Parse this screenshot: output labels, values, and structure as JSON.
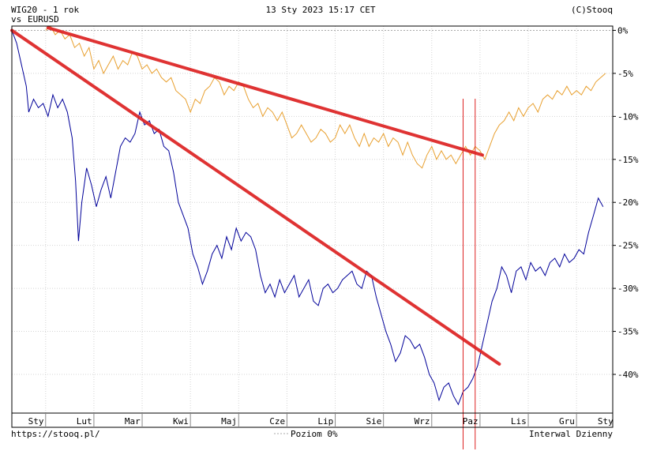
{
  "header": {
    "title": "WIG20 - 1 rok",
    "vs_label": "vs",
    "compare_symbol": "EURUSD",
    "timestamp": "13 Sty 2023 15:17 CET",
    "copyright": "(C)Stooq"
  },
  "footer": {
    "url": "https://stooq.pl/",
    "legend_level": "Poziom 0%",
    "interval": "Interwal Dzienny"
  },
  "colors": {
    "main_series": "#000099",
    "compare_series": "#e8a030",
    "trendline": "#dd2222",
    "vline": "#dd2222",
    "zero_line": "#aaaaaa"
  },
  "chart_data": {
    "type": "line",
    "title": "WIG20 - 1 rok",
    "xlabel": "",
    "ylabel": "",
    "x_unit": "month",
    "xlim": [
      0,
      12.45
    ],
    "ylim": [
      -44.5,
      0.5
    ],
    "y_ticks": [
      0,
      -5,
      -10,
      -15,
      -20,
      -25,
      -30,
      -35,
      -40
    ],
    "y_tick_labels": [
      "0%",
      "-5%",
      "-10%",
      "-15%",
      "-20%",
      "-25%",
      "-30%",
      "-35%",
      "-40%"
    ],
    "x_tick_labels": [
      "Sty",
      "Lut",
      "Mar",
      "Kwi",
      "Maj",
      "Cze",
      "Lip",
      "Sie",
      "Wrz",
      "Paz",
      "Lis",
      "Gru",
      "Sty"
    ],
    "x_label_positions": [
      0.5,
      1.5,
      2.5,
      3.5,
      4.5,
      5.5,
      6.5,
      7.5,
      8.5,
      9.5,
      10.5,
      11.5,
      12.3
    ],
    "x_month_boundaries": [
      0.7,
      1.7,
      2.7,
      3.7,
      4.7,
      5.7,
      6.7,
      7.7,
      8.7,
      9.7,
      10.7,
      11.7
    ],
    "grid": true,
    "series": [
      {
        "name": "WIG20",
        "points": [
          [
            0.0,
            0.0
          ],
          [
            0.1,
            -1.5
          ],
          [
            0.2,
            -4.0
          ],
          [
            0.3,
            -6.5
          ],
          [
            0.35,
            -9.5
          ],
          [
            0.45,
            -8.0
          ],
          [
            0.55,
            -9.0
          ],
          [
            0.65,
            -8.5
          ],
          [
            0.75,
            -10.0
          ],
          [
            0.85,
            -7.5
          ],
          [
            0.95,
            -9.0
          ],
          [
            1.05,
            -8.0
          ],
          [
            1.15,
            -9.5
          ],
          [
            1.25,
            -12.5
          ],
          [
            1.32,
            -17.5
          ],
          [
            1.38,
            -24.5
          ],
          [
            1.45,
            -20.0
          ],
          [
            1.55,
            -16.0
          ],
          [
            1.65,
            -18.0
          ],
          [
            1.75,
            -20.5
          ],
          [
            1.85,
            -18.5
          ],
          [
            1.95,
            -17.0
          ],
          [
            2.05,
            -19.5
          ],
          [
            2.15,
            -16.5
          ],
          [
            2.25,
            -13.5
          ],
          [
            2.35,
            -12.5
          ],
          [
            2.45,
            -13.0
          ],
          [
            2.55,
            -12.0
          ],
          [
            2.65,
            -9.5
          ],
          [
            2.75,
            -11.0
          ],
          [
            2.85,
            -10.5
          ],
          [
            2.95,
            -12.0
          ],
          [
            3.05,
            -11.5
          ],
          [
            3.15,
            -13.5
          ],
          [
            3.25,
            -14.0
          ],
          [
            3.35,
            -16.5
          ],
          [
            3.45,
            -20.0
          ],
          [
            3.55,
            -21.5
          ],
          [
            3.65,
            -23.0
          ],
          [
            3.75,
            -26.0
          ],
          [
            3.85,
            -27.5
          ],
          [
            3.95,
            -29.5
          ],
          [
            4.05,
            -28.0
          ],
          [
            4.15,
            -26.0
          ],
          [
            4.25,
            -25.0
          ],
          [
            4.35,
            -26.5
          ],
          [
            4.45,
            -24.0
          ],
          [
            4.55,
            -25.5
          ],
          [
            4.65,
            -23.0
          ],
          [
            4.75,
            -24.5
          ],
          [
            4.85,
            -23.5
          ],
          [
            4.95,
            -24.0
          ],
          [
            5.05,
            -25.5
          ],
          [
            5.15,
            -28.5
          ],
          [
            5.25,
            -30.5
          ],
          [
            5.35,
            -29.5
          ],
          [
            5.45,
            -31.0
          ],
          [
            5.55,
            -29.0
          ],
          [
            5.65,
            -30.5
          ],
          [
            5.75,
            -29.5
          ],
          [
            5.85,
            -28.5
          ],
          [
            5.95,
            -31.0
          ],
          [
            6.05,
            -30.0
          ],
          [
            6.15,
            -29.0
          ],
          [
            6.25,
            -31.5
          ],
          [
            6.35,
            -32.0
          ],
          [
            6.45,
            -30.0
          ],
          [
            6.55,
            -29.5
          ],
          [
            6.65,
            -30.5
          ],
          [
            6.75,
            -30.0
          ],
          [
            6.85,
            -29.0
          ],
          [
            6.95,
            -28.5
          ],
          [
            7.05,
            -28.0
          ],
          [
            7.15,
            -29.5
          ],
          [
            7.25,
            -30.0
          ],
          [
            7.35,
            -28.0
          ],
          [
            7.45,
            -28.5
          ],
          [
            7.55,
            -31.0
          ],
          [
            7.65,
            -33.0
          ],
          [
            7.75,
            -35.0
          ],
          [
            7.85,
            -36.5
          ],
          [
            7.95,
            -38.5
          ],
          [
            8.05,
            -37.5
          ],
          [
            8.15,
            -35.5
          ],
          [
            8.25,
            -36.0
          ],
          [
            8.35,
            -37.0
          ],
          [
            8.45,
            -36.5
          ],
          [
            8.55,
            -38.0
          ],
          [
            8.65,
            -40.0
          ],
          [
            8.75,
            -41.0
          ],
          [
            8.85,
            -43.0
          ],
          [
            8.95,
            -41.5
          ],
          [
            9.05,
            -41.0
          ],
          [
            9.15,
            -42.5
          ],
          [
            9.25,
            -43.5
          ],
          [
            9.35,
            -42.0
          ],
          [
            9.45,
            -41.5
          ],
          [
            9.55,
            -40.5
          ],
          [
            9.65,
            -39.0
          ],
          [
            9.75,
            -36.5
          ],
          [
            9.85,
            -34.0
          ],
          [
            9.95,
            -31.5
          ],
          [
            10.05,
            -30.0
          ],
          [
            10.15,
            -27.5
          ],
          [
            10.25,
            -28.5
          ],
          [
            10.35,
            -30.5
          ],
          [
            10.45,
            -28.0
          ],
          [
            10.55,
            -27.5
          ],
          [
            10.65,
            -29.0
          ],
          [
            10.75,
            -27.0
          ],
          [
            10.85,
            -28.0
          ],
          [
            10.95,
            -27.5
          ],
          [
            11.05,
            -28.5
          ],
          [
            11.15,
            -27.0
          ],
          [
            11.25,
            -26.5
          ],
          [
            11.35,
            -27.5
          ],
          [
            11.45,
            -26.0
          ],
          [
            11.55,
            -27.0
          ],
          [
            11.65,
            -26.5
          ],
          [
            11.75,
            -25.5
          ],
          [
            11.85,
            -26.0
          ],
          [
            11.95,
            -23.5
          ],
          [
            12.05,
            -21.5
          ],
          [
            12.15,
            -19.5
          ],
          [
            12.25,
            -20.5
          ]
        ]
      },
      {
        "name": "EURUSD",
        "points": [
          [
            0.7,
            0.0
          ],
          [
            0.8,
            0.5
          ],
          [
            0.9,
            -0.5
          ],
          [
            1.0,
            0.0
          ],
          [
            1.1,
            -1.0
          ],
          [
            1.2,
            -0.5
          ],
          [
            1.3,
            -2.0
          ],
          [
            1.4,
            -1.5
          ],
          [
            1.5,
            -3.0
          ],
          [
            1.6,
            -2.0
          ],
          [
            1.7,
            -4.5
          ],
          [
            1.8,
            -3.5
          ],
          [
            1.9,
            -5.0
          ],
          [
            2.0,
            -4.0
          ],
          [
            2.1,
            -3.0
          ],
          [
            2.2,
            -4.5
          ],
          [
            2.3,
            -3.5
          ],
          [
            2.4,
            -4.0
          ],
          [
            2.5,
            -2.5
          ],
          [
            2.6,
            -3.0
          ],
          [
            2.7,
            -4.5
          ],
          [
            2.8,
            -4.0
          ],
          [
            2.9,
            -5.0
          ],
          [
            3.0,
            -4.5
          ],
          [
            3.1,
            -5.5
          ],
          [
            3.2,
            -6.0
          ],
          [
            3.3,
            -5.5
          ],
          [
            3.4,
            -7.0
          ],
          [
            3.5,
            -7.5
          ],
          [
            3.6,
            -8.0
          ],
          [
            3.7,
            -9.5
          ],
          [
            3.8,
            -8.0
          ],
          [
            3.9,
            -8.5
          ],
          [
            4.0,
            -7.0
          ],
          [
            4.1,
            -6.5
          ],
          [
            4.2,
            -5.5
          ],
          [
            4.3,
            -6.0
          ],
          [
            4.4,
            -7.5
          ],
          [
            4.5,
            -6.5
          ],
          [
            4.6,
            -7.0
          ],
          [
            4.7,
            -6.0
          ],
          [
            4.8,
            -6.5
          ],
          [
            4.9,
            -8.0
          ],
          [
            5.0,
            -9.0
          ],
          [
            5.1,
            -8.5
          ],
          [
            5.2,
            -10.0
          ],
          [
            5.3,
            -9.0
          ],
          [
            5.4,
            -9.5
          ],
          [
            5.5,
            -10.5
          ],
          [
            5.6,
            -9.5
          ],
          [
            5.7,
            -11.0
          ],
          [
            5.8,
            -12.5
          ],
          [
            5.9,
            -12.0
          ],
          [
            6.0,
            -11.0
          ],
          [
            6.1,
            -12.0
          ],
          [
            6.2,
            -13.0
          ],
          [
            6.3,
            -12.5
          ],
          [
            6.4,
            -11.5
          ],
          [
            6.5,
            -12.0
          ],
          [
            6.6,
            -13.0
          ],
          [
            6.7,
            -12.5
          ],
          [
            6.8,
            -11.0
          ],
          [
            6.9,
            -12.0
          ],
          [
            7.0,
            -11.0
          ],
          [
            7.1,
            -12.5
          ],
          [
            7.2,
            -13.5
          ],
          [
            7.3,
            -12.0
          ],
          [
            7.4,
            -13.5
          ],
          [
            7.5,
            -12.5
          ],
          [
            7.6,
            -13.0
          ],
          [
            7.7,
            -12.0
          ],
          [
            7.8,
            -13.5
          ],
          [
            7.9,
            -12.5
          ],
          [
            8.0,
            -13.0
          ],
          [
            8.1,
            -14.5
          ],
          [
            8.2,
            -13.0
          ],
          [
            8.3,
            -14.5
          ],
          [
            8.4,
            -15.5
          ],
          [
            8.5,
            -16.0
          ],
          [
            8.6,
            -14.5
          ],
          [
            8.7,
            -13.5
          ],
          [
            8.8,
            -15.0
          ],
          [
            8.9,
            -14.0
          ],
          [
            9.0,
            -15.0
          ],
          [
            9.1,
            -14.5
          ],
          [
            9.2,
            -15.5
          ],
          [
            9.3,
            -14.5
          ],
          [
            9.4,
            -13.5
          ],
          [
            9.5,
            -14.5
          ],
          [
            9.6,
            -13.5
          ],
          [
            9.7,
            -14.0
          ],
          [
            9.8,
            -15.0
          ],
          [
            9.9,
            -13.5
          ],
          [
            10.0,
            -12.0
          ],
          [
            10.1,
            -11.0
          ],
          [
            10.2,
            -10.5
          ],
          [
            10.3,
            -9.5
          ],
          [
            10.4,
            -10.5
          ],
          [
            10.5,
            -9.0
          ],
          [
            10.6,
            -10.0
          ],
          [
            10.7,
            -9.0
          ],
          [
            10.8,
            -8.5
          ],
          [
            10.9,
            -9.5
          ],
          [
            11.0,
            -8.0
          ],
          [
            11.1,
            -7.5
          ],
          [
            11.2,
            -8.0
          ],
          [
            11.3,
            -7.0
          ],
          [
            11.4,
            -7.5
          ],
          [
            11.5,
            -6.5
          ],
          [
            11.6,
            -7.5
          ],
          [
            11.7,
            -7.0
          ],
          [
            11.8,
            -7.5
          ],
          [
            11.9,
            -6.5
          ],
          [
            12.0,
            -7.0
          ],
          [
            12.1,
            -6.0
          ],
          [
            12.2,
            -5.5
          ],
          [
            12.3,
            -5.0
          ]
        ]
      }
    ],
    "annotations": {
      "trendlines": [
        {
          "from": [
            0.0,
            0.0
          ],
          "to": [
            10.1,
            -38.8
          ]
        },
        {
          "from": [
            0.75,
            0.3
          ],
          "to": [
            9.75,
            -14.5
          ]
        }
      ],
      "vlines": [
        9.35,
        9.6
      ]
    }
  }
}
